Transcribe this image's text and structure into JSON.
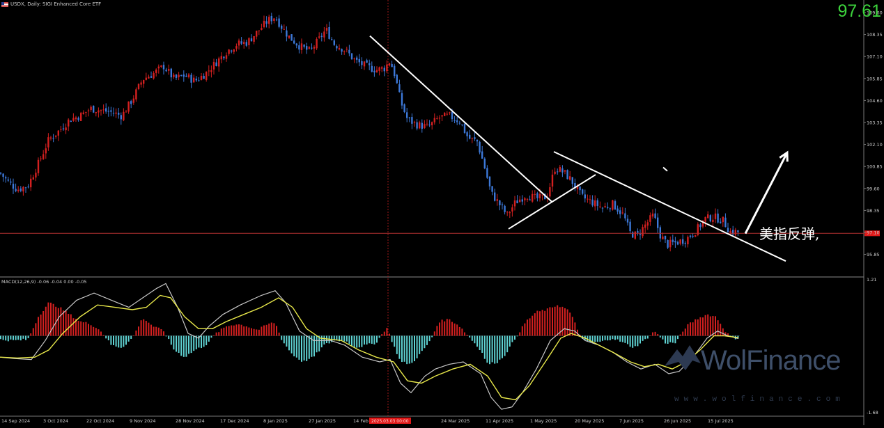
{
  "header": {
    "symbol_line": "USDX, Daily: SIGI Enhanced Core ETF",
    "macd_line": "MACD(12,26,9) -0.06 -0.04 0.00 -0.05"
  },
  "current_price": "97.61",
  "annotation_text": "美指反弹,",
  "watermark": {
    "name": "WolFinance",
    "url": "www.wolfinance.com"
  },
  "colors": {
    "bull": "#d42020",
    "bear": "#3c78d8",
    "hist_pos": "#d42020",
    "hist_neg": "#5fd3d3",
    "signal": "#e8e84a",
    "macd": "#c8c8c8",
    "trendline": "#ffffff",
    "price_line": "#b03030",
    "price_label_bg": "#e01818"
  },
  "chart_data": [
    {
      "type": "candlestick",
      "title": "USDX, Daily",
      "x_tick_labels": [
        "14 Sep 2024",
        "3 Oct 2024",
        "22 Oct 2024",
        "9 Nov 2024",
        "28 Nov 2024",
        "17 Dec 2024",
        "8 Jan 2025",
        "27 Jan 2025",
        "14 Feb 2025",
        "24 Mar 2025",
        "11 Apr 2025",
        "1 May 2025",
        "20 May 2025",
        "7 Jun 2025",
        "26 Jun 2025",
        "15 Jul 2025"
      ],
      "highlighted_date_label": "2025.03.03 00:00",
      "y_tick_labels": [
        "109.60",
        "108.35",
        "107.10",
        "105.85",
        "104.60",
        "103.35",
        "102.10",
        "100.85",
        "99.60",
        "98.35",
        "97.10",
        "95.85"
      ],
      "ylim": [
        95.35,
        110.0
      ],
      "current_price": 97.61,
      "close_path": [
        [
          0,
          100.9
        ],
        [
          12,
          100.4
        ],
        [
          25,
          100.0
        ],
        [
          40,
          100.2
        ],
        [
          55,
          101.4
        ],
        [
          70,
          102.7
        ],
        [
          85,
          103.2
        ],
        [
          100,
          103.8
        ],
        [
          115,
          104.0
        ],
        [
          130,
          104.4
        ],
        [
          145,
          104.3
        ],
        [
          160,
          104.2
        ],
        [
          175,
          104.0
        ],
        [
          190,
          104.9
        ],
        [
          205,
          106.0
        ],
        [
          220,
          106.3
        ],
        [
          235,
          106.7
        ],
        [
          250,
          106.0
        ],
        [
          265,
          106.2
        ],
        [
          280,
          105.9
        ],
        [
          295,
          106.3
        ],
        [
          310,
          106.9
        ],
        [
          325,
          107.5
        ],
        [
          340,
          107.9
        ],
        [
          355,
          108.0
        ],
        [
          370,
          108.6
        ],
        [
          385,
          109.2
        ],
        [
          395,
          109.4
        ],
        [
          405,
          108.8
        ],
        [
          415,
          108.3
        ],
        [
          430,
          107.8
        ],
        [
          445,
          107.5
        ],
        [
          455,
          108.0
        ],
        [
          468,
          108.7
        ],
        [
          480,
          107.9
        ],
        [
          495,
          107.6
        ],
        [
          510,
          107.0
        ],
        [
          525,
          106.7
        ],
        [
          540,
          106.5
        ],
        [
          552,
          106.6
        ],
        [
          560,
          107.0
        ],
        [
          567,
          106.2
        ],
        [
          575,
          104.8
        ],
        [
          585,
          103.8
        ],
        [
          600,
          103.5
        ],
        [
          615,
          103.4
        ],
        [
          630,
          103.9
        ],
        [
          645,
          104.0
        ],
        [
          660,
          103.7
        ],
        [
          672,
          102.8
        ],
        [
          685,
          102.6
        ],
        [
          695,
          101.3
        ],
        [
          705,
          99.8
        ],
        [
          715,
          99.3
        ],
        [
          728,
          98.6
        ],
        [
          740,
          99.3
        ],
        [
          755,
          99.7
        ],
        [
          770,
          99.5
        ],
        [
          785,
          99.6
        ],
        [
          797,
          101.2
        ],
        [
          810,
          100.9
        ],
        [
          820,
          100.5
        ],
        [
          835,
          99.6
        ],
        [
          850,
          99.3
        ],
        [
          865,
          99.0
        ],
        [
          880,
          99.2
        ],
        [
          895,
          98.6
        ],
        [
          905,
          97.6
        ],
        [
          915,
          97.5
        ],
        [
          925,
          98.0
        ],
        [
          938,
          98.6
        ],
        [
          948,
          97.5
        ],
        [
          958,
          97.0
        ],
        [
          970,
          97.1
        ],
        [
          985,
          97.3
        ],
        [
          1000,
          97.8
        ],
        [
          1012,
          98.4
        ],
        [
          1025,
          98.5
        ],
        [
          1038,
          98.3
        ],
        [
          1048,
          97.7
        ],
        [
          1058,
          97.7
        ],
        [
          1063,
          97.61
        ]
      ],
      "trendlines": [
        {
          "from": [
            531,
            108.35
          ],
          "to": [
            793,
            99.3
          ]
        },
        {
          "from": [
            730,
            97.85
          ],
          "to": [
            855,
            100.8
          ]
        },
        {
          "from": [
            795,
            102.05
          ],
          "to": [
            1128,
            96.1
          ]
        }
      ],
      "arrow": {
        "from": [
          1070,
          97.6
        ],
        "to": [
          1130,
          102.0
        ]
      }
    },
    {
      "type": "macd",
      "title": "MACD(12,26,9) -0.06 -0.04 0.00 -0.05",
      "y_tick_labels": [
        "1.21",
        "-1.68"
      ],
      "ylim": [
        -1.68,
        1.21
      ],
      "histogram": [
        [
          0,
          -0.08
        ],
        [
          20,
          -0.1
        ],
        [
          40,
          -0.08
        ],
        [
          55,
          0.4
        ],
        [
          70,
          0.7
        ],
        [
          85,
          0.6
        ],
        [
          100,
          0.45
        ],
        [
          115,
          0.3
        ],
        [
          130,
          0.25
        ],
        [
          145,
          0.1
        ],
        [
          160,
          -0.2
        ],
        [
          175,
          -0.25
        ],
        [
          190,
          -0.05
        ],
        [
          205,
          0.38
        ],
        [
          220,
          0.2
        ],
        [
          235,
          0.1
        ],
        [
          250,
          -0.3
        ],
        [
          265,
          -0.45
        ],
        [
          280,
          -0.3
        ],
        [
          295,
          -0.2
        ],
        [
          310,
          0.05
        ],
        [
          325,
          0.2
        ],
        [
          340,
          0.25
        ],
        [
          355,
          0.2
        ],
        [
          370,
          0.12
        ],
        [
          385,
          0.25
        ],
        [
          395,
          0.28
        ],
        [
          405,
          -0.1
        ],
        [
          420,
          -0.4
        ],
        [
          435,
          -0.55
        ],
        [
          450,
          -0.45
        ],
        [
          465,
          -0.2
        ],
        [
          480,
          -0.1
        ],
        [
          495,
          -0.1
        ],
        [
          510,
          -0.25
        ],
        [
          525,
          -0.2
        ],
        [
          540,
          -0.15
        ],
        [
          555,
          0.18
        ],
        [
          565,
          -0.2
        ],
        [
          575,
          -0.55
        ],
        [
          590,
          -0.6
        ],
        [
          605,
          -0.35
        ],
        [
          618,
          -0.1
        ],
        [
          630,
          0.3
        ],
        [
          645,
          0.35
        ],
        [
          660,
          0.2
        ],
        [
          675,
          -0.05
        ],
        [
          690,
          -0.3
        ],
        [
          700,
          -0.6
        ],
        [
          715,
          -0.55
        ],
        [
          725,
          -0.4
        ],
        [
          740,
          -0.05
        ],
        [
          755,
          0.3
        ],
        [
          770,
          0.5
        ],
        [
          785,
          0.55
        ],
        [
          800,
          0.65
        ],
        [
          815,
          0.55
        ],
        [
          825,
          0.3
        ],
        [
          835,
          -0.08
        ],
        [
          850,
          -0.15
        ],
        [
          865,
          -0.12
        ],
        [
          880,
          -0.05
        ],
        [
          895,
          -0.15
        ],
        [
          910,
          -0.25
        ],
        [
          925,
          -0.1
        ],
        [
          940,
          0.1
        ],
        [
          955,
          -0.15
        ],
        [
          970,
          -0.15
        ],
        [
          985,
          0.2
        ],
        [
          1000,
          0.35
        ],
        [
          1015,
          0.45
        ],
        [
          1028,
          0.4
        ],
        [
          1040,
          0.12
        ],
        [
          1050,
          -0.05
        ],
        [
          1060,
          -0.05
        ]
      ],
      "macd_line": [
        [
          0,
          -0.45
        ],
        [
          20,
          -0.48
        ],
        [
          45,
          -0.5
        ],
        [
          65,
          -0.1
        ],
        [
          85,
          0.4
        ],
        [
          110,
          0.75
        ],
        [
          135,
          0.9
        ],
        [
          160,
          0.75
        ],
        [
          185,
          0.6
        ],
        [
          205,
          0.8
        ],
        [
          225,
          1.0
        ],
        [
          238,
          1.1
        ],
        [
          255,
          0.6
        ],
        [
          270,
          0.05
        ],
        [
          285,
          -0.05
        ],
        [
          300,
          0.2
        ],
        [
          320,
          0.45
        ],
        [
          345,
          0.65
        ],
        [
          375,
          0.85
        ],
        [
          395,
          0.95
        ],
        [
          410,
          0.7
        ],
        [
          430,
          0.1
        ],
        [
          450,
          -0.1
        ],
        [
          475,
          -0.1
        ],
        [
          495,
          -0.2
        ],
        [
          520,
          -0.45
        ],
        [
          545,
          -0.55
        ],
        [
          560,
          -0.5
        ],
        [
          575,
          -1.0
        ],
        [
          590,
          -1.2
        ],
        [
          610,
          -0.85
        ],
        [
          625,
          -0.7
        ],
        [
          645,
          -0.6
        ],
        [
          665,
          -0.55
        ],
        [
          690,
          -0.8
        ],
        [
          705,
          -1.3
        ],
        [
          720,
          -1.55
        ],
        [
          735,
          -1.5
        ],
        [
          750,
          -1.2
        ],
        [
          770,
          -0.7
        ],
        [
          790,
          -0.1
        ],
        [
          810,
          0.15
        ],
        [
          825,
          0.1
        ],
        [
          840,
          -0.1
        ],
        [
          860,
          -0.2
        ],
        [
          880,
          -0.35
        ],
        [
          900,
          -0.55
        ],
        [
          920,
          -0.7
        ],
        [
          940,
          -0.6
        ],
        [
          960,
          -0.8
        ],
        [
          975,
          -0.75
        ],
        [
          995,
          -0.45
        ],
        [
          1015,
          -0.05
        ],
        [
          1030,
          0.1
        ],
        [
          1045,
          0.0
        ],
        [
          1060,
          -0.06
        ]
      ],
      "signal_line": [
        [
          0,
          -0.45
        ],
        [
          25,
          -0.47
        ],
        [
          50,
          -0.45
        ],
        [
          70,
          -0.3
        ],
        [
          90,
          0.05
        ],
        [
          115,
          0.4
        ],
        [
          140,
          0.65
        ],
        [
          165,
          0.6
        ],
        [
          190,
          0.55
        ],
        [
          210,
          0.6
        ],
        [
          230,
          0.85
        ],
        [
          245,
          0.8
        ],
        [
          265,
          0.4
        ],
        [
          285,
          0.15
        ],
        [
          305,
          0.15
        ],
        [
          325,
          0.3
        ],
        [
          350,
          0.45
        ],
        [
          375,
          0.6
        ],
        [
          400,
          0.8
        ],
        [
          420,
          0.6
        ],
        [
          440,
          0.15
        ],
        [
          460,
          -0.05
        ],
        [
          490,
          -0.1
        ],
        [
          515,
          -0.3
        ],
        [
          540,
          -0.45
        ],
        [
          565,
          -0.55
        ],
        [
          585,
          -0.95
        ],
        [
          605,
          -1.0
        ],
        [
          625,
          -0.85
        ],
        [
          650,
          -0.7
        ],
        [
          675,
          -0.6
        ],
        [
          700,
          -0.85
        ],
        [
          720,
          -1.3
        ],
        [
          740,
          -1.35
        ],
        [
          760,
          -1.05
        ],
        [
          785,
          -0.5
        ],
        [
          805,
          -0.05
        ],
        [
          820,
          0.05
        ],
        [
          840,
          -0.05
        ],
        [
          860,
          -0.2
        ],
        [
          880,
          -0.35
        ],
        [
          905,
          -0.55
        ],
        [
          925,
          -0.65
        ],
        [
          945,
          -0.6
        ],
        [
          965,
          -0.7
        ],
        [
          985,
          -0.55
        ],
        [
          1005,
          -0.3
        ],
        [
          1025,
          0.0
        ],
        [
          1040,
          0.0
        ],
        [
          1060,
          -0.04
        ]
      ]
    }
  ]
}
